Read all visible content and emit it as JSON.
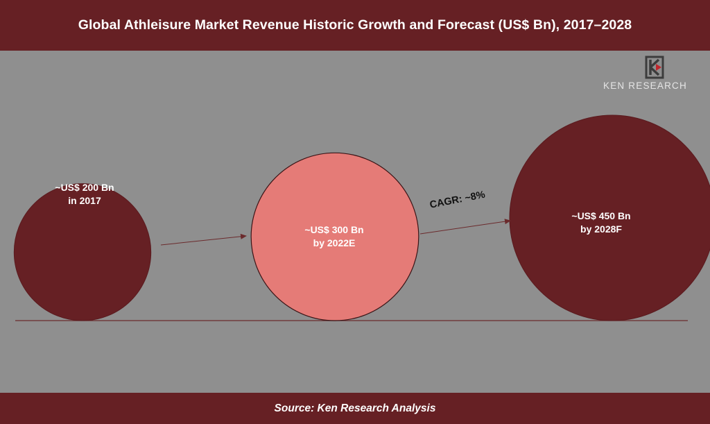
{
  "title": "Global Athleisure Market Revenue Historic Growth and Forecast (US$ Bn), 2017–2028",
  "source": "Source: Ken Research Analysis",
  "logo": {
    "text": "KEN RESEARCH",
    "icon": "ken-research-logo-icon"
  },
  "colors": {
    "header": "#662024",
    "background": "#8f8f8f",
    "bubble_dark": "#662024",
    "bubble_light": "#e57b77",
    "axis": "#6b2a2c"
  },
  "chart_data": {
    "type": "bubble",
    "title": "Global Athleisure Market Revenue Historic Growth and Forecast (US$ Bn), 2017–2028",
    "series": [
      {
        "year": "2017",
        "value": 200,
        "label_line1": "~US$ 200 Bn",
        "label_line2": "in 2017"
      },
      {
        "year": "2022E",
        "value": 300,
        "label_line1": "~US$ 300 Bn",
        "label_line2": "by 2022E"
      },
      {
        "year": "2028F",
        "value": 450,
        "label_line1": "~US$ 450 Bn",
        "label_line2": "by 2028F"
      }
    ],
    "annotations": {
      "cagr": "CAGR: ~8%"
    }
  }
}
